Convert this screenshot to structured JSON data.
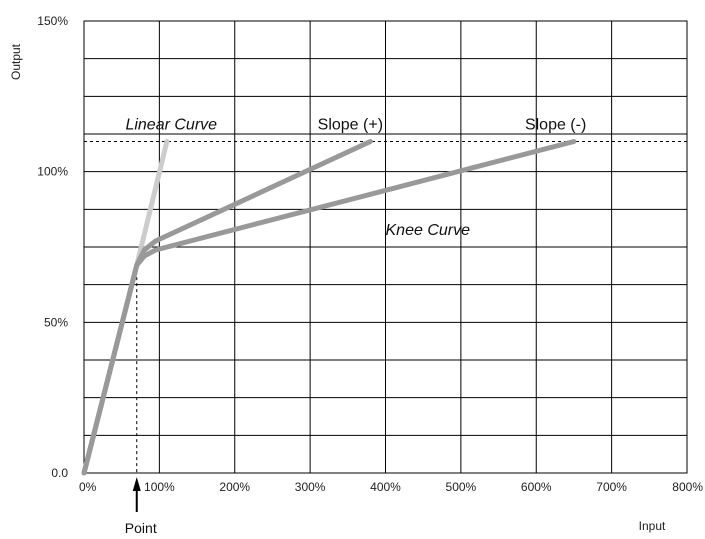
{
  "chart_data": {
    "type": "line",
    "xlabel": "Input",
    "ylabel": "Output",
    "xlim": [
      0,
      800
    ],
    "ylim": [
      0,
      150
    ],
    "x_ticks": [
      {
        "value": 0,
        "label": "0%"
      },
      {
        "value": 100,
        "label": "100%"
      },
      {
        "value": 200,
        "label": "200%"
      },
      {
        "value": 300,
        "label": "300%"
      },
      {
        "value": 400,
        "label": "400%"
      },
      {
        "value": 500,
        "label": "500%"
      },
      {
        "value": 600,
        "label": "600%"
      },
      {
        "value": 700,
        "label": "700%"
      },
      {
        "value": 800,
        "label": "800%"
      }
    ],
    "y_ticks": [
      {
        "value": 0,
        "label": "0.0"
      },
      {
        "value": 50,
        "label": "50%"
      },
      {
        "value": 100,
        "label": "100%"
      },
      {
        "value": 150,
        "label": "150%"
      }
    ],
    "grid": true,
    "x_grid_step": 100,
    "y_grid_step": 12.5,
    "series": [
      {
        "name": "Linear Curve",
        "color": "#cccccc",
        "points": [
          [
            0,
            0
          ],
          [
            70,
            69
          ],
          [
            110,
            110
          ]
        ]
      },
      {
        "name": "Slope (+)",
        "color": "#999999",
        "points": [
          [
            0,
            0
          ],
          [
            70,
            69
          ],
          [
            80,
            74
          ],
          [
            95,
            77
          ],
          [
            380,
            110
          ]
        ]
      },
      {
        "name": "Slope (-)",
        "color": "#999999",
        "points": [
          [
            0,
            0
          ],
          [
            70,
            69
          ],
          [
            80,
            72
          ],
          [
            95,
            74
          ],
          [
            650,
            110
          ]
        ]
      }
    ],
    "reference_lines": {
      "horizontal_y": 110,
      "vertical_x": 70
    },
    "annotations": [
      {
        "text": "Linear Curve",
        "x": 55,
        "y": 114,
        "italic": true
      },
      {
        "text": "Slope (+)",
        "x": 310,
        "y": 114,
        "italic": false
      },
      {
        "text": "Slope (-)",
        "x": 585,
        "y": 114,
        "italic": false
      },
      {
        "text": "Knee Curve",
        "x": 400,
        "y": 79,
        "italic": true
      }
    ],
    "point_marker": {
      "label": "Point",
      "x": 70
    }
  }
}
